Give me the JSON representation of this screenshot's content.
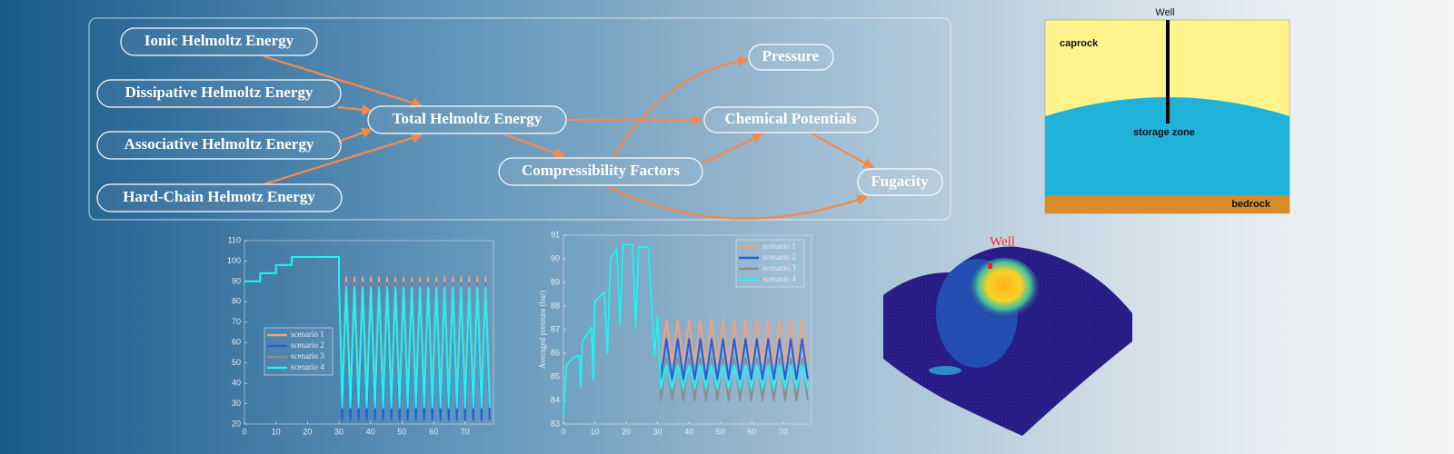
{
  "diagram": {
    "nodes": [
      "Ionic Helmoltz Energy",
      "Dissipative Helmoltz Energy",
      "Associative Helmoltz Energy",
      "Hard-Chain Helmotz Energy",
      "Total Helmoltz Energy",
      "Compressibility Factors",
      "Pressure",
      "Chemical Potentials",
      "Fugacity"
    ]
  },
  "schematic": {
    "labels": {
      "well": "Well",
      "caprock": "caprock",
      "storage": "storage zone",
      "bedrock": "bedrock"
    }
  },
  "surface": {
    "label": "Well"
  },
  "chart_data": [
    {
      "type": "line",
      "x": [
        0,
        5,
        5,
        10,
        10,
        15,
        15,
        30,
        30,
        31,
        32.3,
        33.6,
        34.9,
        36.2,
        37.5,
        38.8,
        40.1,
        41.4,
        42.7,
        44,
        45.3,
        46.6,
        47.9,
        49.2,
        50.5,
        51.8,
        53.1,
        54.4,
        55.7,
        57,
        58.3,
        59.6,
        60.9,
        62.2,
        63.5,
        64.8,
        66.1,
        67.4,
        68.7,
        70,
        71.3,
        72.6,
        73.9,
        75.2,
        76.5,
        77.8
      ],
      "series": [
        {
          "name": "scenario 1",
          "color": "#f4a07a",
          "values": [
            90,
            90,
            94,
            94,
            98,
            98,
            102,
            102,
            90,
            33,
            92,
            33,
            92,
            33,
            92,
            33,
            92,
            33,
            92,
            33,
            92,
            33,
            92,
            33,
            92,
            33,
            92,
            33,
            92,
            33,
            92,
            33,
            92,
            33,
            92,
            33,
            92,
            33,
            92,
            33,
            92,
            33,
            92,
            33,
            92,
            33
          ]
        },
        {
          "name": "scenario 2",
          "color": "#1f5fdc",
          "values": [
            90,
            90,
            94,
            94,
            98,
            98,
            102,
            102,
            90,
            22,
            89,
            22,
            89,
            22,
            89,
            22,
            89,
            22,
            89,
            22,
            89,
            22,
            89,
            22,
            89,
            22,
            89,
            22,
            89,
            22,
            89,
            22,
            89,
            22,
            89,
            22,
            89,
            22,
            89,
            22,
            89,
            22,
            89,
            22,
            89,
            22
          ]
        },
        {
          "name": "scenario 3",
          "color": "#8c8c8c",
          "values": [
            90,
            90,
            94,
            94,
            98,
            98,
            102,
            102,
            90,
            30,
            88,
            30,
            88,
            30,
            88,
            30,
            88,
            30,
            88,
            30,
            88,
            30,
            88,
            30,
            88,
            30,
            88,
            30,
            88,
            30,
            88,
            30,
            88,
            30,
            88,
            30,
            88,
            30,
            88,
            30,
            88,
            30,
            88,
            30,
            88,
            30
          ]
        },
        {
          "name": "scenario 4",
          "color": "#1ff4f4",
          "values": [
            90,
            90,
            94,
            94,
            98,
            98,
            102,
            102,
            90,
            28,
            87,
            28,
            87,
            28,
            87,
            28,
            87,
            28,
            87,
            28,
            87,
            28,
            87,
            28,
            87,
            28,
            87,
            28,
            87,
            28,
            87,
            28,
            87,
            28,
            87,
            28,
            87,
            28,
            87,
            28,
            87,
            28,
            87,
            28,
            87,
            28
          ]
        }
      ],
      "xlim": [
        0,
        79
      ],
      "xticks": [
        0,
        10,
        20,
        30,
        40,
        50,
        60,
        70
      ],
      "ylim": [
        20,
        110
      ],
      "yticks": [
        20,
        30,
        40,
        50,
        60,
        70,
        80,
        90,
        100,
        110
      ],
      "legend": "lower left"
    },
    {
      "type": "line",
      "y_label": "Averaged pressure (bar)",
      "x": [
        0,
        1,
        3,
        5,
        5.5,
        6,
        9,
        9.5,
        10,
        13,
        14,
        15,
        17,
        18,
        19,
        22,
        23,
        24,
        27,
        29,
        30,
        31,
        32.8,
        34.6,
        36.4,
        38.2,
        40,
        41.8,
        43.6,
        45.4,
        47.2,
        49,
        50.8,
        52.6,
        54.4,
        56.2,
        58,
        59.8,
        61.6,
        63.4,
        65.2,
        67,
        68.8,
        70.6,
        72.4,
        74.2,
        76,
        77.8
      ],
      "series": [
        {
          "name": "scenario 1",
          "color": "#f4a07a",
          "values": [
            83.4,
            85.5,
            85.8,
            85.9,
            84.6,
            86.5,
            87.1,
            84.9,
            88.2,
            88.6,
            86,
            90,
            90.4,
            87.2,
            90.6,
            90.6,
            87.1,
            90.5,
            90.5,
            85.9,
            87.6,
            85.6,
            87.4,
            85.6,
            87.4,
            85.6,
            87.4,
            85.6,
            87.4,
            85.6,
            87.4,
            85.6,
            87.4,
            85.6,
            87.4,
            85.6,
            87.4,
            85.6,
            87.4,
            85.6,
            87.4,
            85.6,
            87.4,
            85.6,
            87.4,
            85.6,
            87.4,
            85.6
          ]
        },
        {
          "name": "scenario 2",
          "color": "#1f5fdc",
          "values": [
            83.4,
            85.5,
            85.8,
            85.9,
            84.6,
            86.5,
            87.1,
            84.9,
            88.2,
            88.6,
            86,
            90,
            90.4,
            87.2,
            90.6,
            90.6,
            87.1,
            90.5,
            90.5,
            85.9,
            87.6,
            84.9,
            86.6,
            84.9,
            86.6,
            84.9,
            86.6,
            84.9,
            86.6,
            84.9,
            86.6,
            84.9,
            86.6,
            84.9,
            86.6,
            84.9,
            86.6,
            84.9,
            86.6,
            84.9,
            86.6,
            84.9,
            86.6,
            84.9,
            86.6,
            84.9,
            86.6,
            84.9
          ]
        },
        {
          "name": "scenario 3",
          "color": "#8c8c8c",
          "values": [
            83.4,
            85.5,
            85.8,
            85.9,
            84.6,
            86.5,
            87.1,
            84.9,
            88.2,
            88.6,
            86,
            90,
            90.4,
            87.2,
            90.6,
            90.6,
            87.1,
            90.5,
            90.5,
            85.9,
            87.6,
            84,
            85.8,
            84,
            85.8,
            84,
            85.8,
            84,
            85.8,
            84,
            85.8,
            84,
            85.8,
            84,
            85.8,
            84,
            85.8,
            84,
            85.8,
            84,
            85.8,
            84,
            85.8,
            84,
            85.8,
            84,
            85.8,
            84
          ]
        },
        {
          "name": "scenario 4",
          "color": "#1ff4f4",
          "values": [
            83.4,
            85.5,
            85.8,
            85.9,
            84.6,
            86.5,
            87.1,
            84.9,
            88.2,
            88.6,
            86,
            90,
            90.4,
            87.2,
            90.6,
            90.6,
            87.1,
            90.5,
            90.5,
            85.9,
            87.6,
            84.5,
            85.5,
            84.5,
            85.5,
            84.5,
            85.5,
            84.5,
            85.5,
            84.5,
            85.5,
            84.5,
            85.5,
            84.5,
            85.5,
            84.5,
            85.5,
            84.5,
            85.5,
            84.5,
            85.5,
            84.5,
            85.5,
            84.5,
            85.5,
            84.5,
            85.5,
            84.5
          ]
        }
      ],
      "xlim": [
        0,
        79
      ],
      "xticks": [
        0,
        10,
        20,
        30,
        40,
        50,
        60,
        70
      ],
      "ylim": [
        83,
        91
      ],
      "yticks": [
        83,
        84,
        85,
        86,
        87,
        88,
        89,
        90,
        91
      ],
      "legend": "upper right"
    }
  ]
}
